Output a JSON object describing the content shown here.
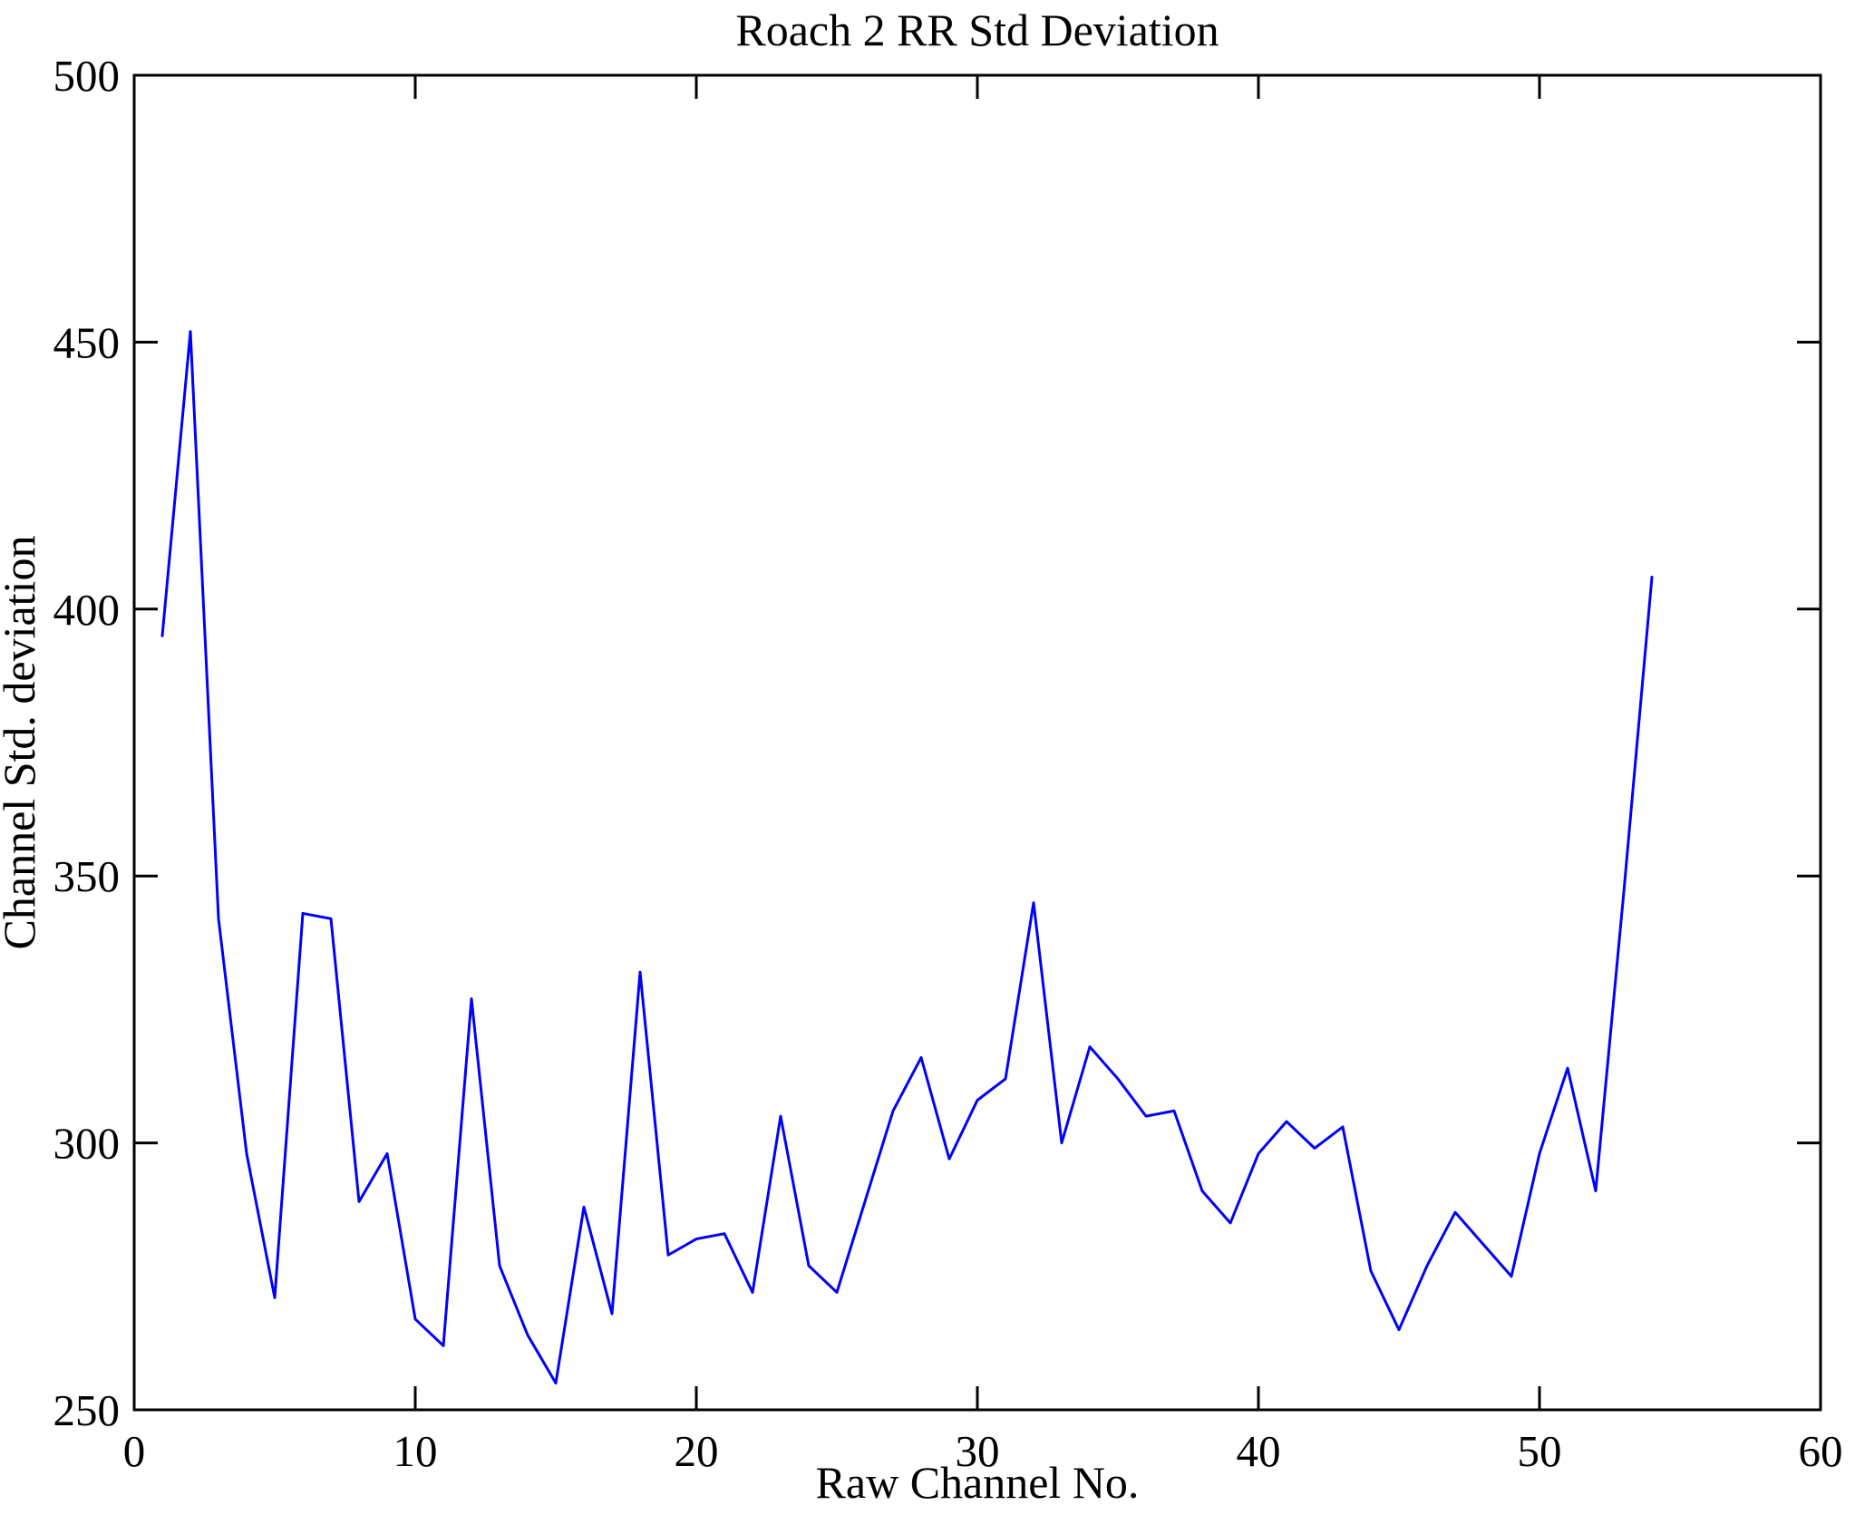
{
  "figure": {
    "background_color": "#ffffff",
    "axis_color": "#000000",
    "line_color": "#0000ff"
  },
  "chart_data": {
    "type": "line",
    "title": "Roach 2 RR Std Deviation",
    "xlabel": "Raw Channel No.",
    "ylabel": "Channel Std. deviation",
    "xlim": [
      0,
      60
    ],
    "ylim": [
      250,
      500
    ],
    "xticks": [
      0,
      10,
      20,
      30,
      40,
      50,
      60
    ],
    "yticks": [
      250,
      300,
      350,
      400,
      450,
      500
    ],
    "grid": false,
    "box": true,
    "legend_position": "none",
    "series": [
      {
        "name": "Channel Std. deviation",
        "color": "#0000ff",
        "x": [
          1,
          2,
          3,
          4,
          5,
          6,
          7,
          8,
          9,
          10,
          11,
          12,
          13,
          14,
          15,
          16,
          17,
          18,
          19,
          20,
          21,
          22,
          23,
          24,
          25,
          26,
          27,
          28,
          29,
          30,
          31,
          32,
          33,
          34,
          35,
          36,
          37,
          38,
          39,
          40,
          41,
          42,
          43,
          44,
          45,
          46,
          47,
          48,
          49,
          50,
          51,
          52,
          53,
          54
        ],
        "y": [
          395,
          452,
          342,
          298,
          271,
          343,
          342,
          289,
          298,
          267,
          262,
          327,
          277,
          264,
          255,
          288,
          268,
          332,
          279,
          282,
          283,
          272,
          305,
          277,
          272,
          289,
          306,
          316,
          297,
          308,
          312,
          345,
          300,
          318,
          312,
          305,
          306,
          291,
          285,
          298,
          304,
          299,
          303,
          276,
          265,
          277,
          287,
          281,
          275,
          298,
          314,
          291,
          347,
          406
        ]
      }
    ]
  }
}
